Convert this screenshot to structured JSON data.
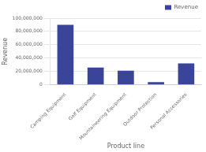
{
  "chart_data": {
    "type": "bar",
    "categories": [
      "Camping Equipment",
      "Golf Equipment",
      "Mountaineering Equipment",
      "Outdoor Protection",
      "Personal Accessories"
    ],
    "series": [
      {
        "name": "Revenue",
        "color": "#3a4599",
        "values": [
          90000000,
          26000000,
          21000000,
          4000000,
          32000000
        ]
      }
    ],
    "xlabel": "Product line",
    "ylabel": "Revenue",
    "ylim": [
      0,
      100000000
    ],
    "yticks": [
      0,
      {
        "value": 20000000,
        "label": "20,000,000"
      },
      {
        "value": 40000000,
        "label": "40,000,000"
      },
      {
        "value": 60000000,
        "label": "60,000,000"
      },
      {
        "value": 80000000,
        "label": "80,000,000"
      },
      {
        "value": 100000000,
        "label": "100,000,000"
      }
    ],
    "grid": true,
    "legend": "upper right"
  }
}
